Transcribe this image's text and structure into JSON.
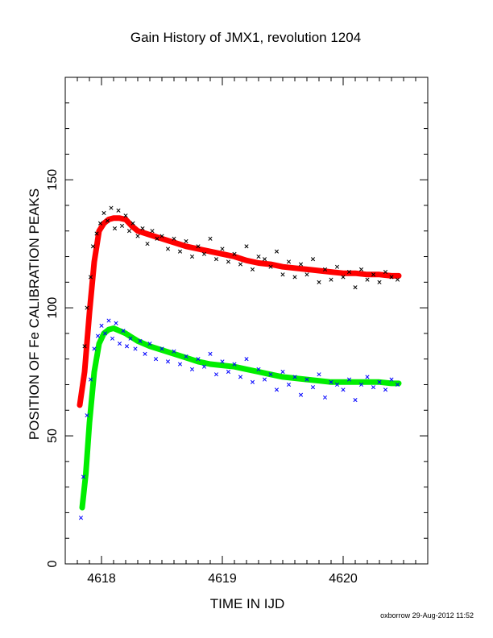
{
  "chart_data": {
    "type": "scatter",
    "title": "Gain History of JMX1, revolution 1204",
    "xlabel": "TIME IN IJD",
    "ylabel": "POSITION OF Fe CALIBRATION PEAKS",
    "xlim": [
      4617.7,
      4620.7
    ],
    "ylim": [
      0,
      190
    ],
    "xticks": [
      4618,
      4619,
      4620
    ],
    "yticks": [
      0,
      50,
      100,
      150
    ],
    "grid": false,
    "footer": "oxborrow 29-Aug-2012 11:52",
    "colors": {
      "upper_points": "#000000",
      "upper_fit": "#ff0000",
      "lower_points": "#0000ff",
      "lower_fit": "#00ee00"
    },
    "series": [
      {
        "role": "upper-fit",
        "marker": "plus",
        "x": [
          4617.82,
          4617.86,
          4617.9,
          4617.94,
          4617.98,
          4618.02,
          4618.06,
          4618.1,
          4618.15,
          4618.2,
          4618.25,
          4618.3,
          4618.4,
          4618.5,
          4618.6,
          4618.7,
          4618.8,
          4618.9,
          4619.0,
          4619.1,
          4619.2,
          4619.3,
          4619.4,
          4619.5,
          4619.6,
          4619.7,
          4619.8,
          4619.9,
          4620.0,
          4620.1,
          4620.2,
          4620.3,
          4620.4,
          4620.46
        ],
        "y": [
          62,
          75,
          98,
          118,
          130,
          133,
          134.5,
          135,
          135,
          134.5,
          132,
          130,
          128.5,
          127,
          125.5,
          124,
          123,
          122,
          121,
          120,
          118.5,
          117.5,
          117,
          116,
          115.5,
          115,
          114.5,
          114,
          113.5,
          113.5,
          113,
          113,
          112.5,
          112.5
        ]
      },
      {
        "role": "lower-fit",
        "marker": "plus",
        "x": [
          4617.84,
          4617.87,
          4617.9,
          4617.94,
          4617.98,
          4618.02,
          4618.06,
          4618.1,
          4618.15,
          4618.2,
          4618.25,
          4618.3,
          4618.4,
          4618.5,
          4618.6,
          4618.7,
          4618.8,
          4618.9,
          4619.0,
          4619.1,
          4619.2,
          4619.3,
          4619.4,
          4619.5,
          4619.6,
          4619.7,
          4619.8,
          4619.9,
          4620.0,
          4620.1,
          4620.2,
          4620.3,
          4620.4,
          4620.46
        ],
        "y": [
          22,
          35,
          55,
          75,
          86,
          90,
          91.5,
          92,
          91,
          90,
          88.5,
          87,
          85,
          83.5,
          82,
          80.5,
          79,
          78,
          77.5,
          77,
          76,
          75,
          74,
          73,
          72.5,
          72,
          71.5,
          71,
          71,
          71,
          71,
          71,
          70.5,
          70.5
        ]
      },
      {
        "role": "upper-points",
        "marker": "cross",
        "x": [
          4617.86,
          4617.88,
          4617.91,
          4617.93,
          4617.96,
          4617.99,
          4618.02,
          4618.05,
          4618.08,
          4618.11,
          4618.14,
          4618.17,
          4618.2,
          4618.23,
          4618.26,
          4618.3,
          4618.34,
          4618.38,
          4618.42,
          4618.46,
          4618.5,
          4618.55,
          4618.6,
          4618.65,
          4618.7,
          4618.75,
          4618.8,
          4618.85,
          4618.9,
          4618.95,
          4619.0,
          4619.05,
          4619.1,
          4619.15,
          4619.2,
          4619.25,
          4619.3,
          4619.35,
          4619.4,
          4619.45,
          4619.5,
          4619.55,
          4619.6,
          4619.65,
          4619.7,
          4619.75,
          4619.8,
          4619.85,
          4619.9,
          4619.95,
          4620.0,
          4620.05,
          4620.1,
          4620.15,
          4620.2,
          4620.25,
          4620.3,
          4620.35,
          4620.4,
          4620.45
        ],
        "y": [
          85,
          100,
          112,
          124,
          129,
          133,
          137,
          134,
          139,
          131,
          138,
          132,
          136,
          130,
          133,
          128,
          131,
          125,
          130,
          127,
          128,
          123,
          127,
          122,
          126,
          120,
          124,
          121,
          127,
          119,
          123,
          118,
          121,
          117,
          124,
          115,
          120,
          119,
          116,
          122,
          113,
          118,
          112,
          117,
          113,
          119,
          110,
          115,
          111,
          116,
          112,
          114,
          108,
          115,
          111,
          113,
          110,
          114,
          112,
          111
        ]
      },
      {
        "role": "lower-points",
        "marker": "cross",
        "x": [
          4617.83,
          4617.85,
          4617.88,
          4617.91,
          4617.94,
          4617.97,
          4618.0,
          4618.03,
          4618.06,
          4618.09,
          4618.12,
          4618.15,
          4618.18,
          4618.21,
          4618.24,
          4618.28,
          4618.32,
          4618.36,
          4618.4,
          4618.45,
          4618.5,
          4618.55,
          4618.6,
          4618.65,
          4618.7,
          4618.75,
          4618.8,
          4618.85,
          4618.9,
          4618.95,
          4619.0,
          4619.05,
          4619.1,
          4619.15,
          4619.2,
          4619.25,
          4619.3,
          4619.35,
          4619.4,
          4619.45,
          4619.5,
          4619.55,
          4619.6,
          4619.65,
          4619.7,
          4619.75,
          4619.8,
          4619.85,
          4619.9,
          4619.95,
          4620.0,
          4620.05,
          4620.1,
          4620.15,
          4620.2,
          4620.25,
          4620.3,
          4620.35,
          4620.4,
          4620.45
        ],
        "y": [
          18,
          34,
          58,
          72,
          84,
          89,
          93,
          90,
          95,
          88,
          94,
          86,
          91,
          85,
          88,
          84,
          87,
          82,
          86,
          80,
          84,
          79,
          83,
          78,
          81,
          76,
          80,
          77,
          82,
          74,
          79,
          75,
          78,
          73,
          80,
          71,
          76,
          72,
          74,
          68,
          75,
          70,
          73,
          66,
          72,
          69,
          74,
          65,
          71,
          70,
          68,
          72,
          64,
          70,
          73,
          69,
          71,
          68,
          72,
          70
        ]
      }
    ]
  }
}
